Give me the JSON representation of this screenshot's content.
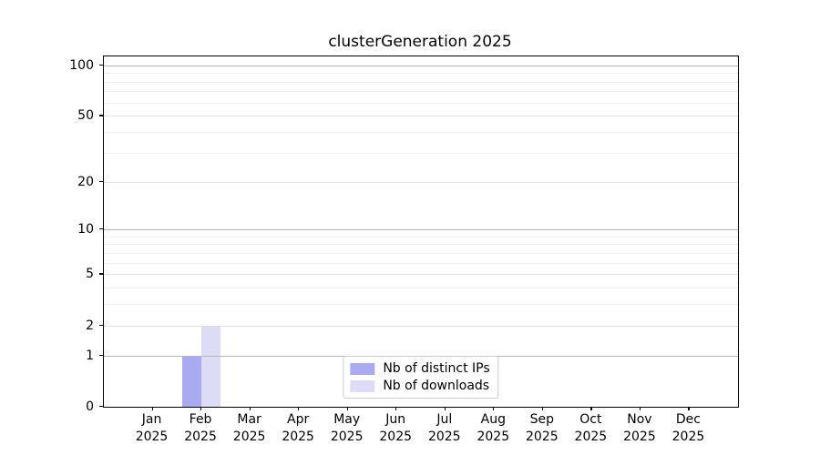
{
  "figure": {
    "background": "#ffffff"
  },
  "chart_data": {
    "type": "bar",
    "title": "clusterGeneration 2025",
    "categories": [
      "Jan 2025",
      "Feb 2025",
      "Mar 2025",
      "Apr 2025",
      "May 2025",
      "Jun 2025",
      "Jul 2025",
      "Aug 2025",
      "Sep 2025",
      "Oct 2025",
      "Nov 2025",
      "Dec 2025"
    ],
    "series": [
      {
        "name": "Nb of distinct IPs",
        "color": "#aaaaf0",
        "values": [
          0,
          1,
          0,
          0,
          0,
          0,
          0,
          0,
          0,
          0,
          0,
          0
        ]
      },
      {
        "name": "Nb of downloads",
        "color": "#dcdcf6",
        "values": [
          0,
          2,
          0,
          0,
          0,
          0,
          0,
          0,
          0,
          0,
          0,
          0
        ]
      }
    ],
    "xlabel": "",
    "ylabel": "",
    "yscale": "log1p",
    "yticks": [
      0,
      1,
      2,
      5,
      10,
      20,
      50,
      100
    ],
    "minor_yticks": [
      3,
      4,
      6,
      7,
      8,
      9,
      30,
      40,
      60,
      70,
      80,
      90
    ],
    "ylim": [
      0,
      113
    ],
    "grid": "horizontal, major and minor, drawn above bars",
    "legend_position": "lower center",
    "colors": {
      "grid_decade": "#b5b5b5",
      "grid_major": "#e1e1e1",
      "grid_minor": "#f0f0f0",
      "spine": "#000000",
      "text": "#000000"
    }
  }
}
